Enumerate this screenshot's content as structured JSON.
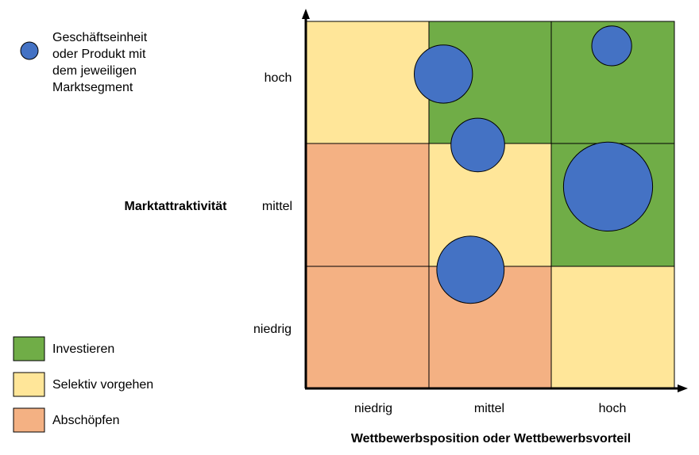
{
  "colors": {
    "investieren": "#70ad47",
    "selektiv": "#ffe699",
    "abschoepfen": "#f4b183",
    "bubble": "#4472c4",
    "bubble_stroke": "#000000"
  },
  "legend_bubble": {
    "label_lines": [
      "Geschäftseinheit",
      "oder Produkt mit",
      "dem jeweiligen",
      "Marktsegment"
    ]
  },
  "legend": [
    {
      "label": "Investieren",
      "color_key": "investieren"
    },
    {
      "label": "Selektiv vorgehen",
      "color_key": "selektiv"
    },
    {
      "label": "Abschöpfen",
      "color_key": "abschoepfen"
    }
  ],
  "y_axis": {
    "title": "Marktattraktivität",
    "levels": [
      "hoch",
      "mittel",
      "niedrig"
    ]
  },
  "x_axis": {
    "title": "Wettbewerbsposition oder Wettbewerbsvorteil",
    "levels": [
      "niedrig",
      "mittel",
      "hoch"
    ]
  },
  "matrix": [
    [
      "selektiv",
      "investieren",
      "investieren"
    ],
    [
      "abschoepfen",
      "selektiv",
      "investieren"
    ],
    [
      "abschoepfen",
      "abschoepfen",
      "selektiv"
    ]
  ],
  "bubbles": [
    {
      "x": 1.12,
      "y": 2.57,
      "size": 1.5
    },
    {
      "x": 2.49,
      "y": 2.8,
      "size": 0.7
    },
    {
      "x": 1.4,
      "y": 1.99,
      "size": 1.27
    },
    {
      "x": 2.46,
      "y": 1.65,
      "size": 3.5
    },
    {
      "x": 1.34,
      "y": 0.97,
      "size": 2.0
    }
  ]
}
